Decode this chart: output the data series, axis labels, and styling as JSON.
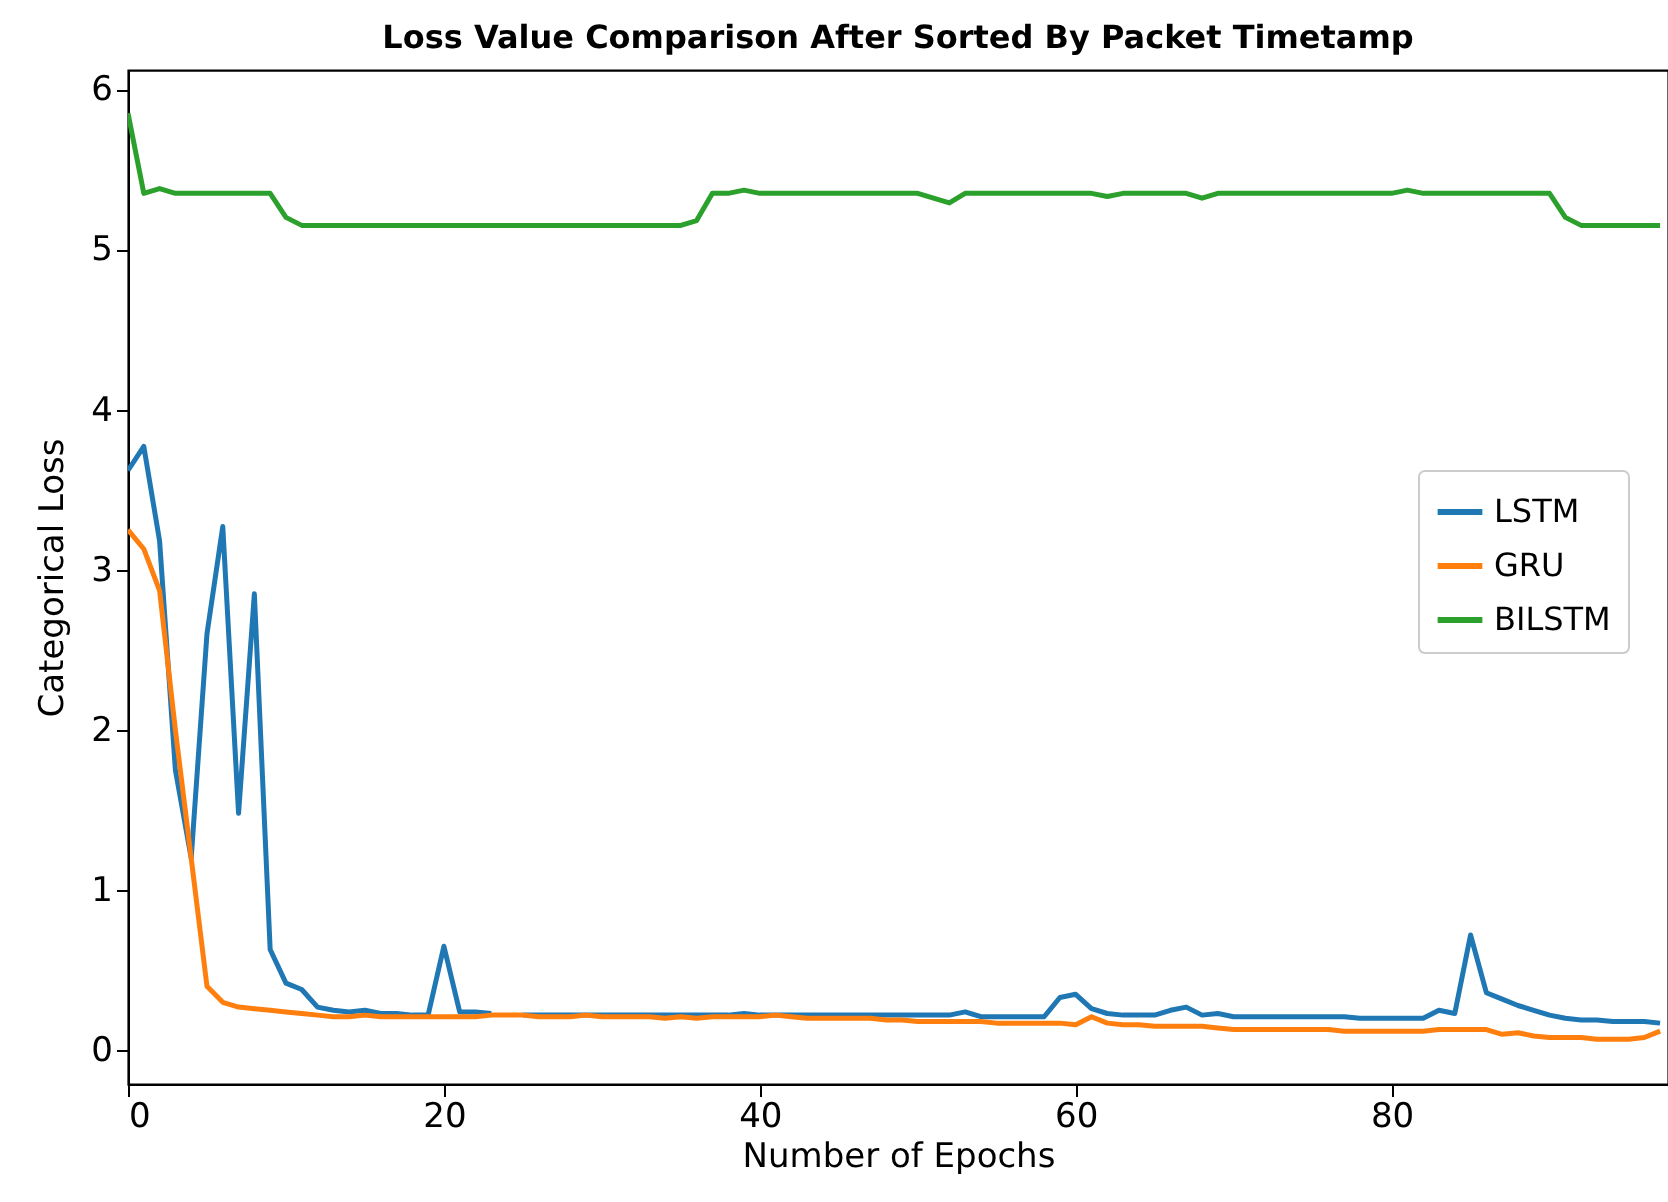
{
  "chart_data": {
    "type": "line",
    "title": "Loss Value Comparison After Sorted By Packet Timetamp",
    "xlabel": "Number of Epochs",
    "ylabel": "Categorical Loss",
    "x": [
      0,
      1,
      2,
      3,
      4,
      5,
      6,
      7,
      8,
      9,
      10,
      11,
      12,
      13,
      14,
      15,
      16,
      17,
      18,
      19,
      20,
      21,
      22,
      23,
      24,
      25,
      26,
      27,
      28,
      29,
      30,
      31,
      32,
      33,
      34,
      35,
      36,
      37,
      38,
      39,
      40,
      41,
      42,
      43,
      44,
      45,
      46,
      47,
      48,
      49,
      50,
      51,
      52,
      53,
      54,
      55,
      56,
      57,
      58,
      59,
      60,
      61,
      62,
      63,
      64,
      65,
      66,
      67,
      68,
      69,
      70,
      71,
      72,
      73,
      74,
      75,
      76,
      77,
      78,
      79,
      80,
      81,
      82,
      83,
      84,
      85,
      86,
      87,
      88,
      89,
      90,
      91,
      92,
      93,
      94,
      95,
      96,
      97
    ],
    "series": [
      {
        "name": "LSTM",
        "color": "#1f77b4",
        "values": [
          3.62,
          3.77,
          3.18,
          1.75,
          1.2,
          2.6,
          3.27,
          1.48,
          2.85,
          0.63,
          0.42,
          0.38,
          0.27,
          0.25,
          0.24,
          0.25,
          0.23,
          0.23,
          0.22,
          0.22,
          0.65,
          0.24,
          0.24,
          0.23,
          null,
          0.22,
          0.22,
          0.22,
          0.22,
          0.22,
          0.22,
          0.22,
          0.22,
          0.22,
          0.22,
          0.22,
          0.22,
          0.22,
          0.22,
          0.23,
          0.22,
          0.22,
          0.22,
          0.22,
          0.22,
          0.22,
          0.22,
          0.22,
          0.22,
          0.22,
          0.22,
          0.22,
          0.22,
          0.24,
          0.21,
          0.21,
          0.21,
          0.21,
          0.21,
          0.33,
          0.35,
          0.26,
          0.23,
          0.22,
          0.22,
          0.22,
          0.25,
          0.27,
          0.22,
          0.23,
          0.21,
          0.21,
          0.21,
          0.21,
          0.21,
          0.21,
          0.21,
          0.21,
          0.2,
          0.2,
          0.2,
          0.2,
          0.2,
          0.25,
          0.23,
          0.72,
          0.36,
          0.32,
          0.28,
          0.25,
          0.22,
          0.2,
          0.19,
          0.19,
          0.18,
          0.18,
          0.18,
          0.17
        ]
      },
      {
        "name": "GRU",
        "color": "#ff7f0e",
        "values": [
          3.25,
          3.13,
          2.87,
          2.0,
          1.2,
          0.4,
          0.3,
          0.27,
          0.26,
          0.25,
          0.24,
          0.23,
          0.22,
          0.21,
          0.21,
          0.22,
          0.21,
          0.21,
          0.21,
          0.21,
          0.21,
          0.21,
          0.21,
          0.22,
          0.22,
          0.22,
          0.21,
          0.21,
          0.21,
          0.22,
          0.21,
          0.21,
          0.21,
          0.21,
          0.2,
          0.21,
          0.2,
          0.21,
          0.21,
          0.21,
          0.21,
          0.22,
          0.21,
          0.2,
          0.2,
          0.2,
          0.2,
          0.2,
          0.19,
          0.19,
          0.18,
          0.18,
          0.18,
          0.18,
          0.18,
          0.17,
          0.17,
          0.17,
          0.17,
          0.17,
          0.16,
          0.21,
          0.17,
          0.16,
          0.16,
          0.15,
          0.15,
          0.15,
          0.15,
          0.14,
          0.13,
          0.13,
          0.13,
          0.13,
          0.13,
          0.13,
          0.13,
          0.12,
          0.12,
          0.12,
          0.12,
          0.12,
          0.12,
          0.13,
          0.13,
          0.13,
          0.13,
          0.1,
          0.11,
          0.09,
          0.08,
          0.08,
          0.08,
          0.07,
          0.07,
          0.07,
          0.08,
          0.12
        ]
      },
      {
        "name": "BILSTM",
        "color": "#2ca02c",
        "values": [
          5.85,
          5.35,
          5.38,
          5.35,
          5.35,
          5.35,
          5.35,
          5.35,
          5.35,
          5.35,
          5.2,
          5.15,
          5.15,
          5.15,
          5.15,
          5.15,
          5.15,
          5.15,
          5.15,
          5.15,
          5.15,
          5.15,
          5.15,
          5.15,
          5.15,
          5.15,
          5.15,
          5.15,
          5.15,
          5.15,
          5.15,
          5.15,
          5.15,
          5.15,
          5.15,
          5.15,
          5.18,
          5.35,
          5.35,
          5.37,
          5.35,
          5.35,
          5.35,
          5.35,
          5.35,
          5.35,
          5.35,
          5.35,
          5.35,
          5.35,
          5.35,
          5.32,
          5.29,
          5.35,
          5.35,
          5.35,
          5.35,
          5.35,
          5.35,
          5.35,
          5.35,
          5.35,
          5.33,
          5.35,
          5.35,
          5.35,
          5.35,
          5.35,
          5.32,
          5.35,
          5.35,
          5.35,
          5.35,
          5.35,
          5.35,
          5.35,
          5.35,
          5.35,
          5.35,
          5.35,
          5.35,
          5.37,
          5.35,
          5.35,
          5.35,
          5.35,
          5.35,
          5.35,
          5.35,
          5.35,
          5.35,
          5.2,
          5.15,
          5.15,
          5.15,
          5.15,
          5.15,
          5.15
        ]
      }
    ],
    "xlim": [
      0,
      97.5
    ],
    "ylim": [
      -0.21,
      6.12
    ],
    "xticks": [
      0,
      20,
      40,
      60,
      80
    ],
    "yticks": [
      0,
      1,
      2,
      3,
      4,
      5,
      6
    ],
    "legend": "right",
    "line_style": "solid"
  }
}
